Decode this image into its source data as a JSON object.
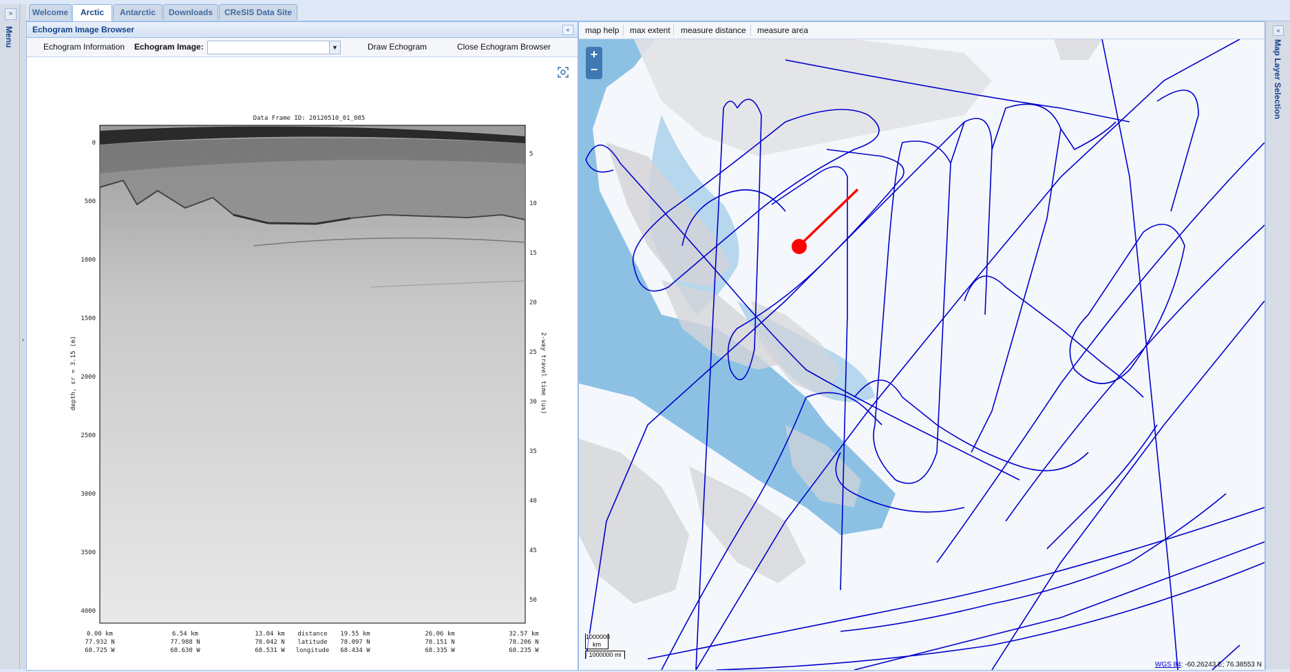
{
  "tabs": [
    "Welcome",
    "Arctic",
    "Antarctic",
    "Downloads",
    "CReSIS Data Site"
  ],
  "active_tab": "Arctic",
  "left_menu": {
    "label": "Menu",
    "expand_icon": "double-chevron-right-icon"
  },
  "echogram_panel": {
    "title": "Echogram Image Browser",
    "toolbar": {
      "info_label": "Echogram Information",
      "image_label": "Echogram Image:",
      "image_value": "",
      "draw_label": "Draw Echogram",
      "close_label": "Close Echogram Browser"
    },
    "figure": {
      "title": "Data Frame ID: 20120510_01_085",
      "left_axis_label": "depth, εr = 3.15 (m)",
      "right_axis_label": "2-way travel time (us)",
      "left_ticks": [
        "0",
        "500",
        "1000",
        "1500",
        "2000",
        "2500",
        "3000",
        "3500",
        "4000"
      ],
      "right_ticks": [
        "5",
        "10",
        "15",
        "20",
        "25",
        "30",
        "35",
        "40",
        "45",
        "50"
      ],
      "bottom_columns": [
        {
          "distance": "0.00 km",
          "latitude": "77.932 N",
          "longitude": "68.725 W"
        },
        {
          "distance": "6.54 km",
          "latitude": "77.988 N",
          "longitude": "68.630 W"
        },
        {
          "distance": "13.04 km",
          "latitude": "78.042 N",
          "longitude": "68.531 W"
        },
        {
          "distance": "19.55 km",
          "latitude": "78.097 N",
          "longitude": "68.434 W"
        },
        {
          "distance": "26.06 km",
          "latitude": "78.151 N",
          "longitude": "68.335 W"
        },
        {
          "distance": "32.57 km",
          "latitude": "78.206 N",
          "longitude": "68.235 W"
        }
      ],
      "row_labels": {
        "distance": "distance",
        "latitude": "latitude",
        "longitude": "longitude"
      }
    }
  },
  "map_panel": {
    "toolbar": [
      "map help",
      "max extent",
      "measure distance",
      "measure area"
    ],
    "zoom_in": "+",
    "zoom_out": "−",
    "scale_km": "1000000 km",
    "scale_mi": "1000000 mi",
    "projection_link": "WGS 84",
    "coordinates": ": -60.26243 E; 76.38553 N",
    "colors": {
      "flight_lines": "#0000cc",
      "selection": "#ff0000",
      "water": "#7fb6dc",
      "land": "#d8d8da"
    }
  },
  "right_panel": {
    "label": "Map Layer Selection"
  }
}
